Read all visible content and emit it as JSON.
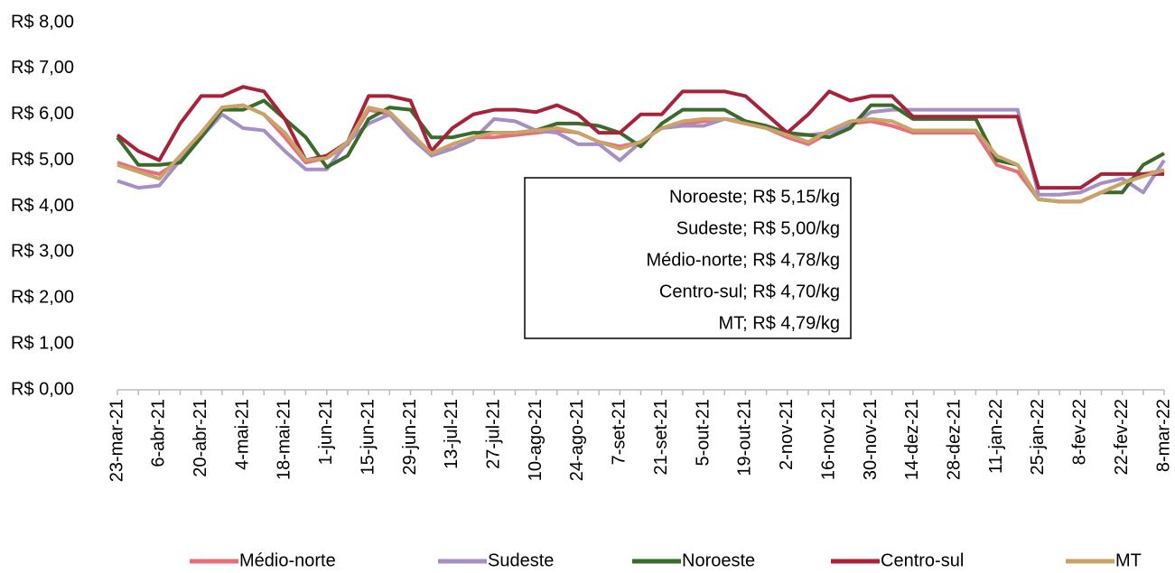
{
  "chart_data": {
    "type": "line",
    "categories": [
      "23-mar-21",
      null,
      "6-abr-21",
      null,
      "20-abr-21",
      null,
      "4-mai-21",
      null,
      "18-mai-21",
      null,
      "1-jun-21",
      null,
      "15-jun-21",
      null,
      "29-jun-21",
      null,
      "13-jul-21",
      null,
      "27-jul-21",
      null,
      "10-ago-21",
      null,
      "24-ago-21",
      null,
      "7-set-21",
      null,
      "21-set-21",
      null,
      "5-out-21",
      null,
      "19-out-21",
      null,
      "2-nov-21",
      null,
      "16-nov-21",
      null,
      "30-nov-21",
      null,
      "14-dez-21",
      null,
      "28-dez-21",
      null,
      "11-jan-22",
      null,
      "25-jan-22",
      null,
      "8-fev-22",
      null,
      "22-fev-22",
      null,
      "8-mar-22"
    ],
    "series": [
      {
        "name": "Médio-norte",
        "color": "#e6707a",
        "values": [
          4.95,
          4.8,
          4.7,
          5.0,
          5.6,
          6.15,
          6.2,
          6.0,
          5.5,
          4.95,
          5.05,
          5.35,
          6.1,
          6.0,
          5.6,
          5.1,
          5.35,
          5.5,
          5.5,
          5.55,
          5.6,
          5.65,
          5.6,
          5.4,
          5.3,
          5.4,
          5.7,
          5.8,
          5.85,
          5.9,
          5.8,
          5.7,
          5.5,
          5.35,
          5.6,
          5.8,
          5.85,
          5.75,
          5.6,
          5.6,
          5.6,
          5.6,
          4.9,
          4.75,
          4.15,
          4.1,
          4.1,
          4.3,
          4.5,
          4.7,
          4.78
        ]
      },
      {
        "name": "Sudeste",
        "color": "#a58fc4",
        "values": [
          4.55,
          4.4,
          4.45,
          5.0,
          5.5,
          6.0,
          5.7,
          5.65,
          5.2,
          4.8,
          4.8,
          5.4,
          5.8,
          6.0,
          5.5,
          5.1,
          5.25,
          5.45,
          5.9,
          5.85,
          5.65,
          5.6,
          5.35,
          5.35,
          5.0,
          5.4,
          5.7,
          5.75,
          5.75,
          5.9,
          5.85,
          5.7,
          5.55,
          5.55,
          5.6,
          5.75,
          6.05,
          6.1,
          6.1,
          6.1,
          6.1,
          6.1,
          6.1,
          6.1,
          4.25,
          4.25,
          4.3,
          4.5,
          4.6,
          4.3,
          5.0
        ]
      },
      {
        "name": "Noroeste",
        "color": "#3a6b2a",
        "values": [
          5.5,
          4.9,
          4.9,
          4.95,
          5.5,
          6.1,
          6.1,
          6.3,
          5.9,
          5.5,
          4.85,
          5.1,
          5.9,
          6.15,
          6.1,
          5.5,
          5.5,
          5.6,
          5.6,
          5.6,
          5.65,
          5.8,
          5.8,
          5.75,
          5.6,
          5.3,
          5.8,
          6.1,
          6.1,
          6.1,
          5.85,
          5.75,
          5.6,
          5.55,
          5.5,
          5.7,
          6.2,
          6.2,
          5.9,
          5.9,
          5.9,
          5.9,
          5.0,
          4.9,
          4.15,
          4.1,
          4.1,
          4.3,
          4.3,
          4.9,
          5.15
        ]
      },
      {
        "name": "Centro-sul",
        "color": "#a8223a",
        "values": [
          5.55,
          5.2,
          5.0,
          5.8,
          6.4,
          6.4,
          6.6,
          6.5,
          5.9,
          5.0,
          5.1,
          5.4,
          6.4,
          6.4,
          6.3,
          5.2,
          5.7,
          6.0,
          6.1,
          6.1,
          6.05,
          6.2,
          6.0,
          5.6,
          5.6,
          6.0,
          6.0,
          6.5,
          6.5,
          6.5,
          6.4,
          6.0,
          5.6,
          6.0,
          6.5,
          6.3,
          6.4,
          6.4,
          5.95,
          5.95,
          5.95,
          5.95,
          5.95,
          5.95,
          4.4,
          4.4,
          4.4,
          4.7,
          4.7,
          4.7,
          4.7
        ]
      },
      {
        "name": "MT",
        "color": "#c9a36a",
        "values": [
          4.9,
          4.75,
          4.6,
          5.1,
          5.6,
          6.15,
          6.2,
          6.0,
          5.6,
          5.0,
          5.05,
          5.4,
          6.15,
          6.05,
          5.6,
          5.15,
          5.35,
          5.5,
          5.6,
          5.6,
          5.65,
          5.7,
          5.6,
          5.4,
          5.25,
          5.4,
          5.7,
          5.85,
          5.9,
          5.9,
          5.8,
          5.7,
          5.55,
          5.4,
          5.65,
          5.85,
          5.9,
          5.85,
          5.65,
          5.65,
          5.65,
          5.65,
          5.1,
          4.9,
          4.15,
          4.1,
          4.1,
          4.3,
          4.5,
          4.65,
          4.79
        ]
      }
    ],
    "ylim": [
      0,
      8
    ],
    "yticks": [
      {
        "value": 0,
        "label": "R$ 0,00"
      },
      {
        "value": 1,
        "label": "R$ 1,00"
      },
      {
        "value": 2,
        "label": "R$ 2,00"
      },
      {
        "value": 3,
        "label": "R$ 3,00"
      },
      {
        "value": 4,
        "label": "R$ 4,00"
      },
      {
        "value": 5,
        "label": "R$ 5,00"
      },
      {
        "value": 6,
        "label": "R$ 6,00"
      },
      {
        "value": 7,
        "label": "R$ 7,00"
      },
      {
        "value": 8,
        "label": "R$ 8,00"
      }
    ],
    "annotations": [
      "Noroeste; R$ 5,15/kg",
      "Sudeste; R$ 5,00/kg",
      "Médio-norte; R$ 4,78/kg",
      "Centro-sul; R$ 4,70/kg",
      "MT; R$ 4,79/kg"
    ],
    "legend": "bottom",
    "grid": false
  }
}
